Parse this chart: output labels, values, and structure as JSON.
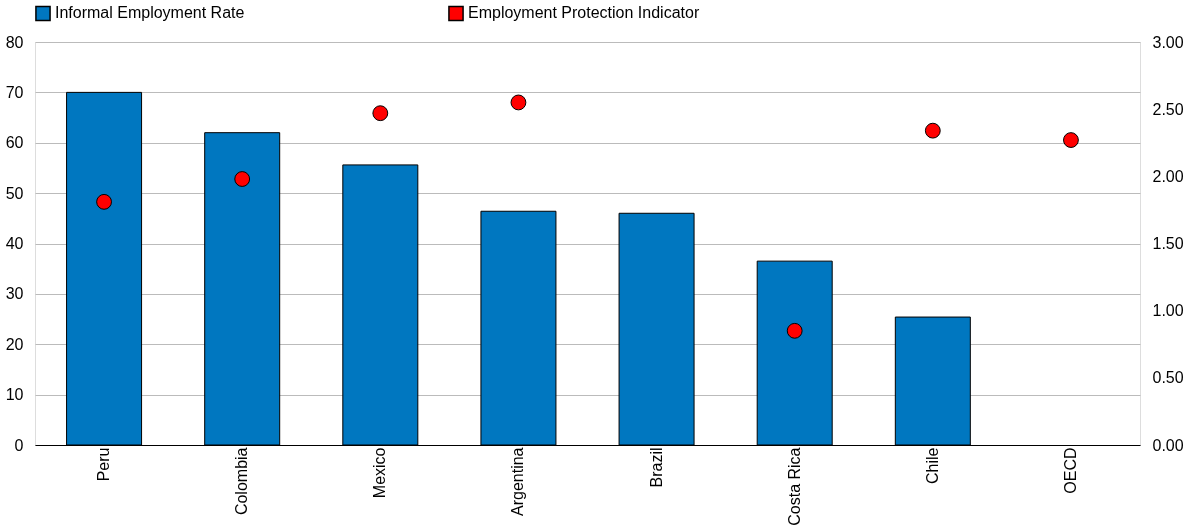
{
  "chart_data": {
    "type": "bar",
    "categories": [
      "Peru",
      "Colombia",
      "Mexico",
      "Argentina",
      "Brazil",
      "Costa Rica",
      "Chile",
      "OECD"
    ],
    "series": [
      {
        "name": "Informal Employment Rate",
        "color": "#0077c0",
        "values": [
          70,
          62,
          55.6,
          46.4,
          46,
          36.5,
          25.4,
          null
        ]
      },
      {
        "name": "Employment Protection Indicator",
        "type": "scatter",
        "axis": "y2",
        "color": "#ff0000",
        "values": [
          1.81,
          1.98,
          2.47,
          2.55,
          null,
          0.85,
          2.34,
          2.27
        ]
      }
    ],
    "ylim": [
      0,
      80
    ],
    "yticks": [
      0,
      10,
      20,
      30,
      40,
      50,
      60,
      70,
      80
    ],
    "y2lim": [
      0,
      3
    ],
    "y2ticks": [
      {
        "value": 0,
        "label": "0.00"
      },
      {
        "value": 0.5,
        "label": "0.50"
      },
      {
        "value": 1,
        "label": "1.00"
      },
      {
        "value": 1.5,
        "label": "1.50"
      },
      {
        "value": 2,
        "label": "2.00"
      },
      {
        "value": 2.5,
        "label": "2.50"
      },
      {
        "value": 3,
        "label": "3.00"
      }
    ],
    "grid": "y",
    "legend": "top",
    "marker": "circle"
  }
}
